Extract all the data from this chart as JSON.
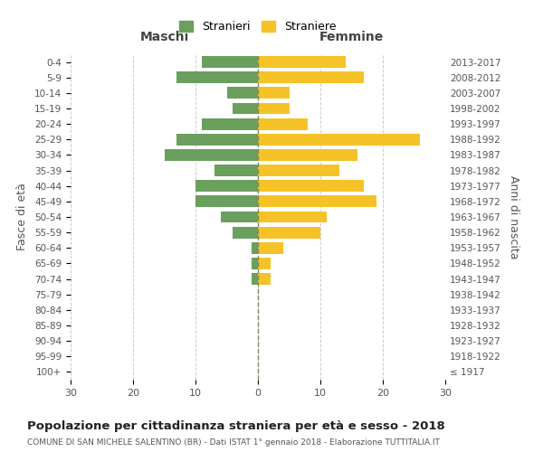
{
  "age_groups": [
    "100+",
    "95-99",
    "90-94",
    "85-89",
    "80-84",
    "75-79",
    "70-74",
    "65-69",
    "60-64",
    "55-59",
    "50-54",
    "45-49",
    "40-44",
    "35-39",
    "30-34",
    "25-29",
    "20-24",
    "15-19",
    "10-14",
    "5-9",
    "0-4"
  ],
  "birth_years": [
    "≤ 1917",
    "1918-1922",
    "1923-1927",
    "1928-1932",
    "1933-1937",
    "1938-1942",
    "1943-1947",
    "1948-1952",
    "1953-1957",
    "1958-1962",
    "1963-1967",
    "1968-1972",
    "1973-1977",
    "1978-1982",
    "1983-1987",
    "1988-1992",
    "1993-1997",
    "1998-2002",
    "2003-2007",
    "2008-2012",
    "2013-2017"
  ],
  "maschi": [
    0,
    0,
    0,
    0,
    0,
    0,
    1,
    1,
    1,
    4,
    6,
    10,
    10,
    7,
    15,
    13,
    9,
    4,
    5,
    13,
    9
  ],
  "femmine": [
    0,
    0,
    0,
    0,
    0,
    0,
    2,
    2,
    4,
    10,
    11,
    19,
    17,
    13,
    16,
    26,
    8,
    5,
    5,
    17,
    14
  ],
  "male_color": "#6a9f5e",
  "female_color": "#f5c327",
  "background_color": "#ffffff",
  "grid_color": "#cccccc",
  "title": "Popolazione per cittadinanza straniera per età e sesso - 2018",
  "subtitle": "COMUNE DI SAN MICHELE SALENTINO (BR) - Dati ISTAT 1° gennaio 2018 - Elaborazione TUTTITALIA.IT",
  "xlabel_left": "Maschi",
  "xlabel_right": "Femmine",
  "ylabel_left": "Fasce di età",
  "ylabel_right": "Anni di nascita",
  "xlim": 30,
  "legend_male": "Stranieri",
  "legend_female": "Straniere"
}
